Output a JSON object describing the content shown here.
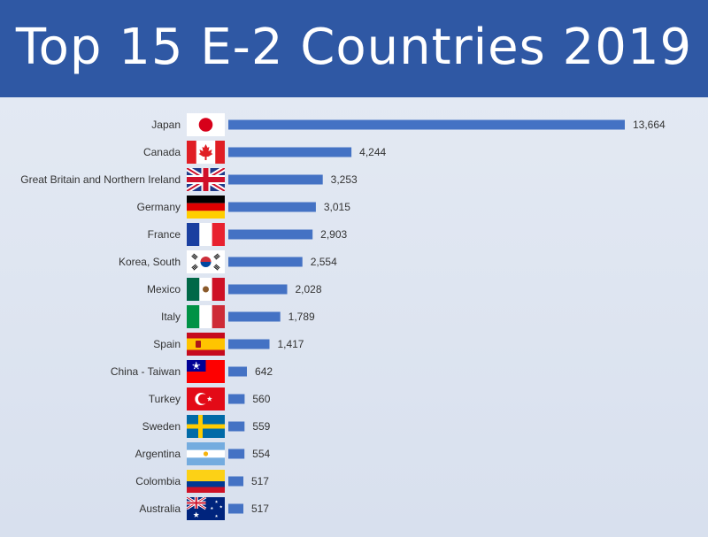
{
  "title": "Top 15 E-2 Countries 2019",
  "colors": {
    "bar": "#4472c4",
    "header": "#2f58a4"
  },
  "chart_data": {
    "type": "bar",
    "orientation": "horizontal",
    "title": "Top 15 E-2 Countries 2019",
    "xlabel": "",
    "ylabel": "",
    "grid": false,
    "categories": [
      "Japan",
      "Canada",
      "Great Britain and Northern Ireland",
      "Germany",
      "France",
      "Korea, South",
      "Mexico",
      "Italy",
      "Spain",
      "China - Taiwan",
      "Turkey",
      "Sweden",
      "Argentina",
      "Colombia",
      "Australia"
    ],
    "values": [
      13664,
      4244,
      3253,
      3015,
      2903,
      2554,
      2028,
      1789,
      1417,
      642,
      560,
      559,
      554,
      517,
      517
    ],
    "value_labels": [
      "13,664",
      "4,244",
      "3,253",
      "3,015",
      "2,903",
      "2,554",
      "2,028",
      "1,789",
      "1,417",
      "642",
      "560",
      "559",
      "554",
      "517",
      "517"
    ],
    "flags": [
      "japan-flag",
      "canada-flag",
      "uk-flag",
      "germany-flag",
      "france-flag",
      "south-korea-flag",
      "mexico-flag",
      "italy-flag",
      "spain-flag",
      "taiwan-flag",
      "turkey-flag",
      "sweden-flag",
      "argentina-flag",
      "colombia-flag",
      "australia-flag"
    ]
  }
}
